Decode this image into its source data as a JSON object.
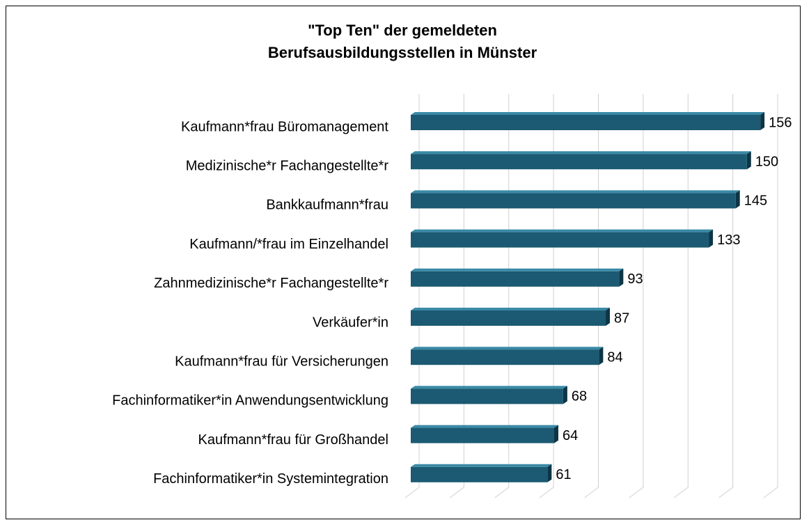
{
  "chart_data": {
    "type": "bar",
    "orientation": "horizontal",
    "title": [
      "\"Top Ten\" der gemeldeten",
      "Berufsausbildungsstellen in Münster"
    ],
    "categories": [
      "Kaufmann*frau Büromanagement",
      "Medizinische*r Fachangestellte*r",
      "Bankkaufmann*frau",
      "Kaufmann/*frau im Einzelhandel",
      "Zahnmedizinische*r Fachangestellte*r",
      "Verkäufer*in",
      "Kaufmann*frau für Versicherungen",
      "Fachinformatiker*in Anwendungsentwicklung",
      "Kaufmann*frau für Großhandel",
      "Fachinformatiker*in Systemintegration"
    ],
    "values": [
      156,
      150,
      145,
      133,
      93,
      87,
      84,
      68,
      64,
      61
    ],
    "color": "#1b5a72",
    "xlim": [
      0,
      160
    ],
    "xticks": [
      0,
      20,
      40,
      60,
      80,
      100,
      120,
      140,
      160
    ],
    "grid": true
  }
}
